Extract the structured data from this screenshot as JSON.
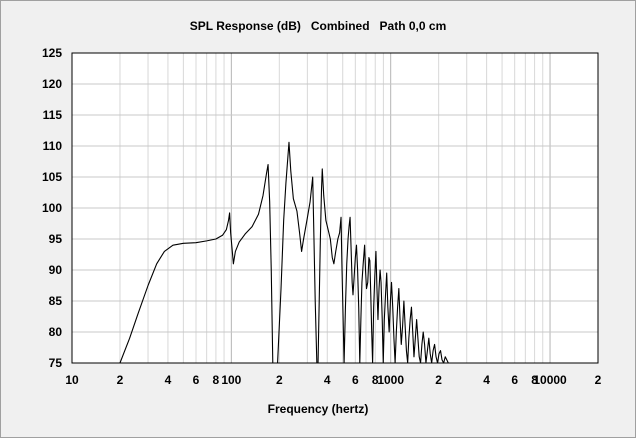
{
  "chart_data": {
    "type": "line",
    "title": "SPL Response (dB)   Combined   Path 0,0 cm",
    "xlabel": "Frequency (hertz)",
    "ylabel": "",
    "x_scale": "log",
    "xlim": [
      10,
      20000
    ],
    "ylim": [
      75,
      125
    ],
    "grid": true,
    "x_tick_labels": [
      {
        "value": 10,
        "label": "10"
      },
      {
        "value": 20,
        "label": "2"
      },
      {
        "value": 40,
        "label": "4"
      },
      {
        "value": 60,
        "label": "6"
      },
      {
        "value": 80,
        "label": "8"
      },
      {
        "value": 100,
        "label": "100"
      },
      {
        "value": 200,
        "label": "2"
      },
      {
        "value": 400,
        "label": "4"
      },
      {
        "value": 600,
        "label": "6"
      },
      {
        "value": 800,
        "label": "8"
      },
      {
        "value": 1000,
        "label": "1000"
      },
      {
        "value": 2000,
        "label": "2"
      },
      {
        "value": 4000,
        "label": "4"
      },
      {
        "value": 6000,
        "label": "6"
      },
      {
        "value": 8000,
        "label": "8"
      },
      {
        "value": 10000,
        "label": "10000"
      },
      {
        "value": 20000,
        "label": "2"
      }
    ],
    "y_ticks": [
      75,
      80,
      85,
      90,
      95,
      100,
      105,
      110,
      115,
      120,
      125
    ],
    "series": [
      {
        "color": "#000000",
        "points": [
          [
            20,
            75
          ],
          [
            23,
            79
          ],
          [
            26,
            83
          ],
          [
            30,
            87.5
          ],
          [
            34,
            91
          ],
          [
            38,
            93
          ],
          [
            43,
            94
          ],
          [
            50,
            94.3
          ],
          [
            60,
            94.4
          ],
          [
            70,
            94.7
          ],
          [
            80,
            95
          ],
          [
            88,
            95.6
          ],
          [
            93,
            96.5
          ],
          [
            96,
            98
          ],
          [
            97.5,
            99.2
          ],
          [
            99,
            96
          ],
          [
            101,
            93.5
          ],
          [
            103,
            91
          ],
          [
            106,
            93
          ],
          [
            112,
            94.5
          ],
          [
            122,
            95.8
          ],
          [
            135,
            97
          ],
          [
            148,
            99
          ],
          [
            158,
            102
          ],
          [
            166,
            105.5
          ],
          [
            170,
            107
          ],
          [
            174,
            101
          ],
          [
            178,
            90
          ],
          [
            182,
            75
          ],
          [
            195,
            75
          ],
          [
            205,
            87
          ],
          [
            213,
            98
          ],
          [
            220,
            104
          ],
          [
            226,
            108
          ],
          [
            230,
            110.6
          ],
          [
            236,
            106
          ],
          [
            245,
            101.5
          ],
          [
            258,
            99.5
          ],
          [
            268,
            96
          ],
          [
            276,
            93
          ],
          [
            284,
            95
          ],
          [
            298,
            98
          ],
          [
            312,
            101
          ],
          [
            324,
            105
          ],
          [
            330,
            95
          ],
          [
            336,
            85
          ],
          [
            344,
            75
          ],
          [
            350,
            75
          ],
          [
            356,
            85
          ],
          [
            362,
            95
          ],
          [
            368,
            103
          ],
          [
            372,
            106.3
          ],
          [
            380,
            102
          ],
          [
            392,
            98
          ],
          [
            405,
            96.5
          ],
          [
            418,
            95
          ],
          [
            430,
            92
          ],
          [
            440,
            91
          ],
          [
            452,
            93
          ],
          [
            466,
            95
          ],
          [
            478,
            96
          ],
          [
            488,
            98.5
          ],
          [
            494,
            91
          ],
          [
            502,
            83
          ],
          [
            510,
            75
          ],
          [
            520,
            84
          ],
          [
            530,
            91
          ],
          [
            540,
            95
          ],
          [
            548,
            97
          ],
          [
            556,
            98.5
          ],
          [
            565,
            93
          ],
          [
            573,
            88
          ],
          [
            580,
            86
          ],
          [
            590,
            89
          ],
          [
            600,
            92
          ],
          [
            610,
            94
          ],
          [
            620,
            90
          ],
          [
            630,
            84
          ],
          [
            640,
            75
          ],
          [
            650,
            82
          ],
          [
            660,
            88
          ],
          [
            672,
            91
          ],
          [
            686,
            94
          ],
          [
            695,
            90
          ],
          [
            705,
            87
          ],
          [
            718,
            88
          ],
          [
            730,
            92
          ],
          [
            740,
            91.5
          ],
          [
            750,
            86
          ],
          [
            760,
            80
          ],
          [
            770,
            75
          ],
          [
            782,
            84
          ],
          [
            795,
            89
          ],
          [
            808,
            93
          ],
          [
            820,
            87
          ],
          [
            832,
            82
          ],
          [
            845,
            87
          ],
          [
            858,
            90
          ],
          [
            870,
            88
          ],
          [
            885,
            82
          ],
          [
            898,
            75
          ],
          [
            912,
            82
          ],
          [
            928,
            86
          ],
          [
            944,
            89.5
          ],
          [
            960,
            84
          ],
          [
            978,
            80
          ],
          [
            996,
            85
          ],
          [
            1012,
            88
          ],
          [
            1030,
            84
          ],
          [
            1048,
            79
          ],
          [
            1066,
            75
          ],
          [
            1085,
            80
          ],
          [
            1105,
            84
          ],
          [
            1125,
            87
          ],
          [
            1145,
            82
          ],
          [
            1165,
            78
          ],
          [
            1188,
            81
          ],
          [
            1210,
            85
          ],
          [
            1232,
            81
          ],
          [
            1255,
            77
          ],
          [
            1278,
            75
          ],
          [
            1300,
            79
          ],
          [
            1325,
            82
          ],
          [
            1350,
            84
          ],
          [
            1375,
            80
          ],
          [
            1400,
            76
          ],
          [
            1428,
            79
          ],
          [
            1455,
            82
          ],
          [
            1482,
            79
          ],
          [
            1510,
            76
          ],
          [
            1540,
            75
          ],
          [
            1570,
            78
          ],
          [
            1600,
            80
          ],
          [
            1632,
            78
          ],
          [
            1664,
            75
          ],
          [
            1700,
            77
          ],
          [
            1735,
            79
          ],
          [
            1770,
            76.5
          ],
          [
            1808,
            75
          ],
          [
            1846,
            77
          ],
          [
            1886,
            78
          ],
          [
            1926,
            76
          ],
          [
            1968,
            75
          ],
          [
            2010,
            76.5
          ],
          [
            2055,
            77
          ],
          [
            2100,
            75.5
          ],
          [
            2150,
            75
          ],
          [
            2200,
            76
          ],
          [
            2250,
            75.5
          ],
          [
            2300,
            75
          ]
        ]
      }
    ]
  }
}
